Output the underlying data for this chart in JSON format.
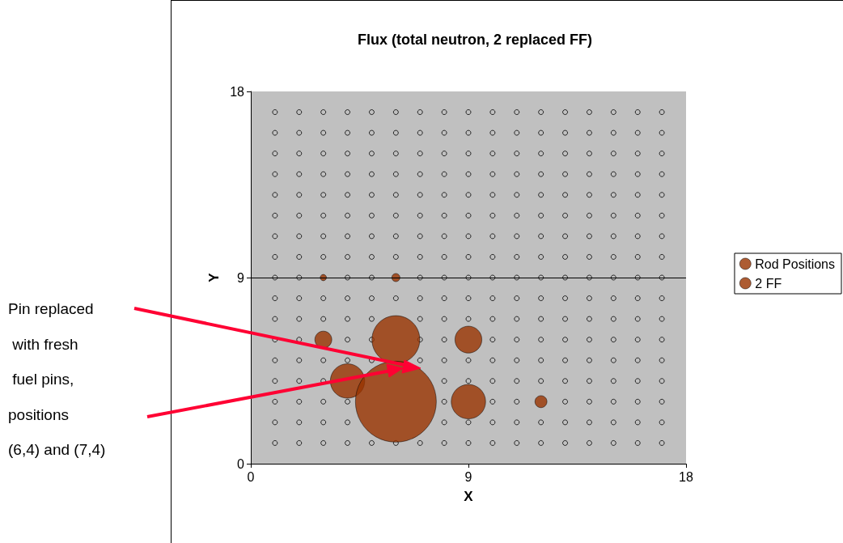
{
  "chart_data": {
    "type": "bubble",
    "title": "Flux (total neutron, 2 replaced FF)",
    "xlabel": "X",
    "ylabel": "Y",
    "xlim": [
      0,
      18
    ],
    "xticks": [
      0,
      9,
      18
    ],
    "ylim": [
      0,
      18
    ],
    "yticks": [
      0,
      9,
      18
    ],
    "grid": false,
    "legend": "right",
    "marker": "circle",
    "ref_lines": [
      {
        "axis": "y",
        "value": 9,
        "color": "#000000"
      }
    ],
    "annotations": [
      "Pin replaced\n with fresh\n fuel pins,\npositions\n(6,4) and (7,4)"
    ],
    "series": [
      {
        "name": "Rod Positions",
        "color": "#993300",
        "x": [
          3,
          6
        ],
        "values": [
          9,
          9
        ],
        "sizes": [
          0.006,
          0.01
        ]
      },
      {
        "name": "2 FF",
        "color": "#993300",
        "x": [
          3,
          6,
          9,
          4,
          6,
          9,
          12
        ],
        "values": [
          6,
          6,
          6,
          4,
          3,
          3,
          3
        ],
        "sizes": [
          0.044,
          0.35,
          0.11,
          0.18,
          1,
          0.18,
          0.022
        ]
      },
      {
        "type": "scatter",
        "color": "#000000",
        "x": [
          1,
          2,
          3,
          4,
          5,
          6,
          7,
          8,
          9,
          10,
          11,
          12,
          13,
          14,
          15,
          16,
          17,
          1,
          2,
          3,
          4,
          5,
          6,
          7,
          8,
          9,
          10,
          11,
          12,
          13,
          14,
          15,
          16,
          17,
          1,
          2,
          3,
          4,
          5,
          6,
          7,
          8,
          9,
          10,
          11,
          12,
          13,
          14,
          15,
          16,
          17,
          1,
          2,
          3,
          4,
          5,
          6,
          7,
          8,
          9,
          10,
          11,
          12,
          13,
          14,
          15,
          16,
          17,
          1,
          2,
          3,
          4,
          5,
          6,
          7,
          8,
          9,
          10,
          11,
          12,
          13,
          14,
          15,
          16,
          17,
          1,
          2,
          3,
          4,
          5,
          6,
          7,
          8,
          9,
          10,
          11,
          12,
          13,
          14,
          15,
          16,
          17,
          1,
          2,
          3,
          4,
          5,
          6,
          7,
          8,
          9,
          10,
          11,
          12,
          13,
          14,
          15,
          16,
          17,
          1,
          2,
          3,
          4,
          5,
          6,
          7,
          8,
          9,
          10,
          11,
          12,
          13,
          14,
          15,
          16,
          17,
          1,
          2,
          4,
          5,
          7,
          8,
          9,
          10,
          11,
          12,
          13,
          14,
          15,
          16,
          17,
          1,
          2,
          3,
          4,
          5,
          6,
          7,
          8,
          9,
          10,
          11,
          12,
          13,
          14,
          15,
          16,
          17,
          1,
          2,
          3,
          4,
          5,
          7,
          8,
          9,
          10,
          11,
          12,
          13,
          14,
          15,
          16,
          17,
          1,
          2,
          4,
          5,
          7,
          8,
          10,
          11,
          12,
          13,
          14,
          15,
          16,
          17,
          1,
          2,
          3,
          4,
          5,
          7,
          8,
          9,
          10,
          11,
          12,
          13,
          14,
          15,
          16,
          17,
          1,
          2,
          3,
          8,
          9,
          10,
          11,
          12,
          13,
          14,
          15,
          16,
          17,
          1,
          2,
          3,
          4,
          8,
          10,
          11,
          13,
          14,
          15,
          16,
          17,
          1,
          2,
          3,
          4,
          8,
          9,
          10,
          11,
          12,
          13,
          14,
          15,
          16,
          17,
          1,
          2,
          3,
          4,
          5,
          6,
          7,
          8,
          9,
          10,
          11,
          12,
          13,
          14,
          15,
          16,
          17
        ],
        "values": [
          17,
          17,
          17,
          17,
          17,
          17,
          17,
          17,
          17,
          17,
          17,
          17,
          17,
          17,
          17,
          17,
          17,
          16,
          16,
          16,
          16,
          16,
          16,
          16,
          16,
          16,
          16,
          16,
          16,
          16,
          16,
          16,
          16,
          16,
          15,
          15,
          15,
          15,
          15,
          15,
          15,
          15,
          15,
          15,
          15,
          15,
          15,
          15,
          15,
          15,
          15,
          14,
          14,
          14,
          14,
          14,
          14,
          14,
          14,
          14,
          14,
          14,
          14,
          14,
          14,
          14,
          14,
          14,
          13,
          13,
          13,
          13,
          13,
          13,
          13,
          13,
          13,
          13,
          13,
          13,
          13,
          13,
          13,
          13,
          13,
          12,
          12,
          12,
          12,
          12,
          12,
          12,
          12,
          12,
          12,
          12,
          12,
          12,
          12,
          12,
          12,
          12,
          11,
          11,
          11,
          11,
          11,
          11,
          11,
          11,
          11,
          11,
          11,
          11,
          11,
          11,
          11,
          11,
          11,
          10,
          10,
          10,
          10,
          10,
          10,
          10,
          10,
          10,
          10,
          10,
          10,
          10,
          10,
          10,
          10,
          10,
          9,
          9,
          9,
          9,
          9,
          9,
          9,
          9,
          9,
          9,
          9,
          9,
          9,
          9,
          9,
          8,
          8,
          8,
          8,
          8,
          8,
          8,
          8,
          8,
          8,
          8,
          8,
          8,
          8,
          8,
          8,
          8,
          7,
          7,
          7,
          7,
          7,
          7,
          7,
          7,
          7,
          7,
          7,
          7,
          7,
          7,
          7,
          7,
          6,
          6,
          6,
          6,
          6,
          6,
          6,
          6,
          6,
          6,
          6,
          6,
          6,
          6,
          5,
          5,
          5,
          5,
          5,
          5,
          5,
          5,
          5,
          5,
          5,
          5,
          5,
          5,
          5,
          5,
          4,
          4,
          4,
          4,
          4,
          4,
          4,
          4,
          4,
          4,
          4,
          4,
          4,
          3,
          3,
          3,
          3,
          3,
          3,
          3,
          3,
          3,
          3,
          3,
          3,
          2,
          2,
          2,
          2,
          2,
          2,
          2,
          2,
          2,
          2,
          2,
          2,
          2,
          2,
          1,
          1,
          1,
          1,
          1,
          1,
          1,
          1,
          1,
          1,
          1,
          1,
          1,
          1,
          1,
          1,
          1
        ]
      }
    ]
  }
}
